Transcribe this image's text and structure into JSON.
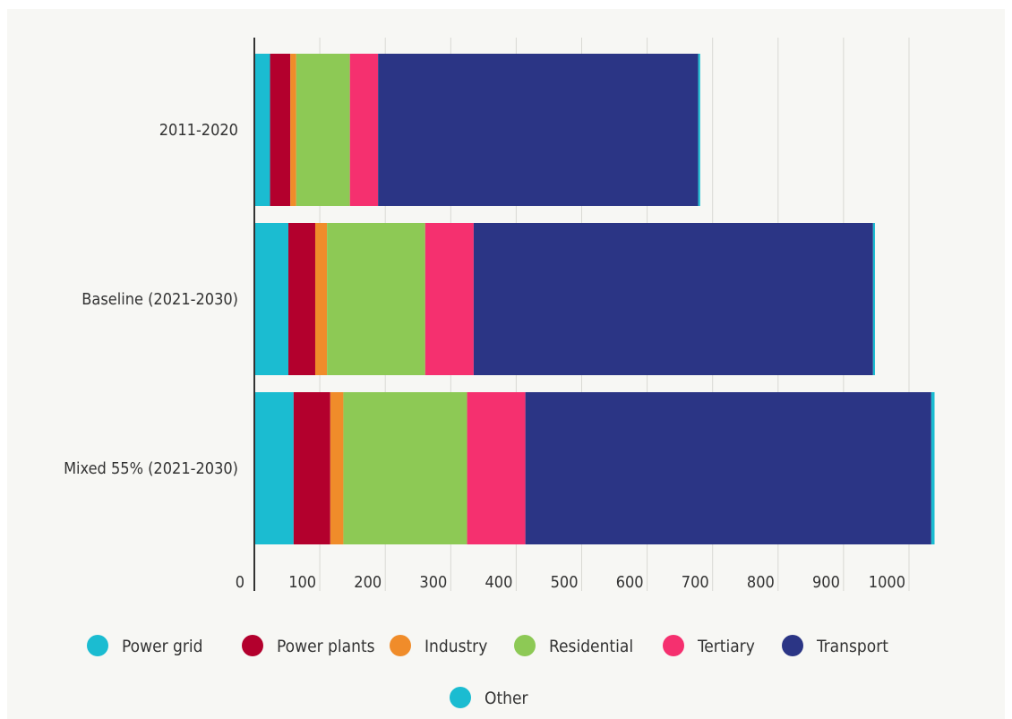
{
  "chart_data": {
    "type": "bar",
    "orientation": "horizontal",
    "stacked": true,
    "categories": [
      "2011-2020",
      "Baseline (2021-2030)",
      "Mixed 55% (2021-2030)"
    ],
    "series": [
      {
        "name": "Power grid",
        "color": "#1bbcd1",
        "values": [
          24,
          52,
          60
        ]
      },
      {
        "name": "Power plants",
        "color": "#b3002d",
        "values": [
          31,
          41,
          56
        ]
      },
      {
        "name": "Industry",
        "color": "#f08c2a",
        "values": [
          9,
          18,
          20
        ]
      },
      {
        "name": "Residential",
        "color": "#8dc955",
        "values": [
          82,
          150,
          189
        ]
      },
      {
        "name": "Tertiary",
        "color": "#f5306f",
        "values": [
          43,
          74,
          89
        ]
      },
      {
        "name": "Transport",
        "color": "#2b3585",
        "values": [
          489,
          610,
          620
        ]
      },
      {
        "name": "Other",
        "color": "#1bbcd1",
        "values": [
          3,
          3,
          5
        ]
      }
    ],
    "xticks": [
      0,
      100,
      200,
      300,
      400,
      500,
      600,
      700,
      800,
      900,
      1000
    ],
    "xlim": [
      0,
      1000
    ],
    "grid": true,
    "legend_position": "bottom"
  }
}
